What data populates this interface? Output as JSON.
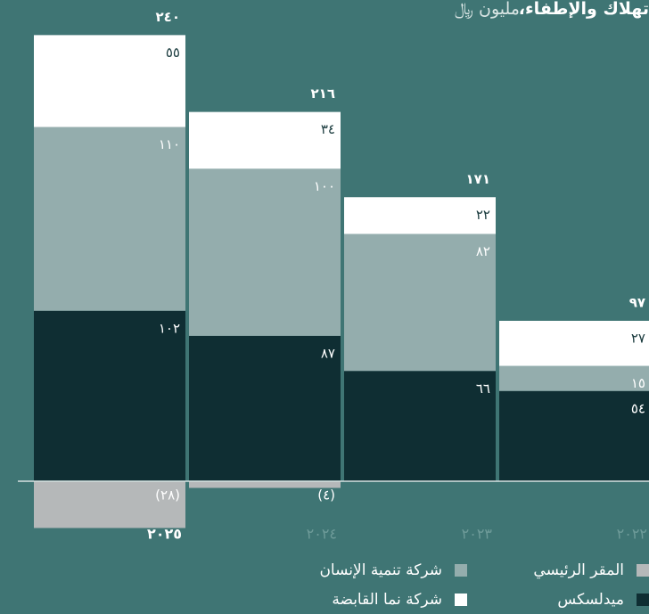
{
  "chart_data": {
    "type": "stacked_bar",
    "title": "تهلاك والإطفاء،",
    "title_unit": "مليون ﷼",
    "categories": [
      "٢٠٢٥",
      "٢٠٢٤",
      "٢٠٢٣",
      "٢٠٢٢"
    ],
    "series": [
      {
        "name": "ميدلسكس",
        "color": "#0f2e33",
        "values": [
          102,
          87,
          66,
          54
        ],
        "value_labels": [
          "١٠٢",
          "٨٧",
          "٦٦",
          "٥٤"
        ]
      },
      {
        "name": "شركة تنمية الإنسان",
        "color": "#94adad",
        "values": [
          110,
          100,
          82,
          15
        ],
        "value_labels": [
          "١١٠",
          "١٠٠",
          "٨٢",
          "١٥"
        ]
      },
      {
        "name": "شركة نما القابضة",
        "color": "#ffffff",
        "values": [
          55,
          34,
          22,
          27
        ],
        "value_labels": [
          "٥٥",
          "٣٤",
          "٢٢",
          "٢٧"
        ]
      },
      {
        "name": "المقر الرئيسي",
        "color": "#b5b8b9",
        "values": [
          -28,
          -4,
          null,
          null
        ],
        "value_labels": [
          "(٢٨)",
          "(٤)",
          null,
          null
        ]
      }
    ],
    "totals": [
      240,
      216,
      171,
      97
    ],
    "total_labels": [
      "٢٤٠",
      "٢١٦",
      "١٧١",
      "٩٧"
    ],
    "ylim": [
      -40,
      288
    ]
  }
}
